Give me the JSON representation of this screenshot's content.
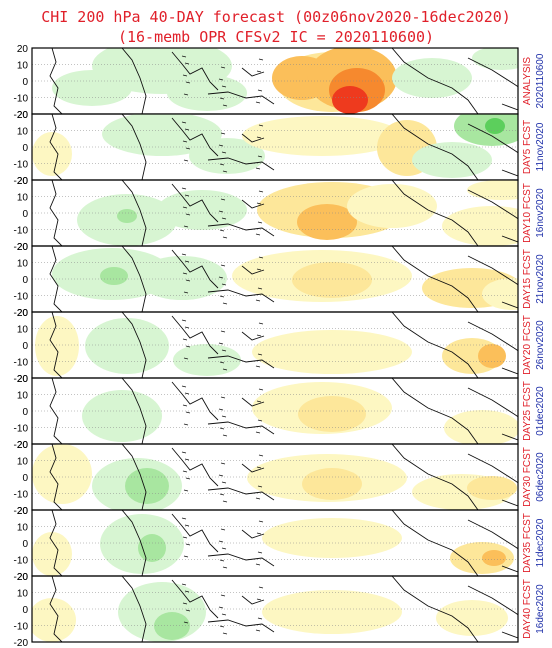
{
  "title": {
    "line1": "CHI 200 hPa 40-DAY forecast (00z06nov2020-16dec2020)",
    "line2": "(16-memb OPR CFSv2 IC = 2020110600)"
  },
  "y_ticks": [
    "20",
    "10",
    "0",
    "-10",
    "-20"
  ],
  "colors": {
    "title": "#e0202a",
    "label_red": "#e0202a",
    "label_blue": "#2233aa",
    "green_light": "#d7f5d2",
    "green_mid": "#a8e6a0",
    "green_dark": "#5ccf5c",
    "yellow_light": "#fdf7c2",
    "yellow_mid": "#fde79a",
    "orange": "#fbbf5a",
    "orange_dark": "#f6892e",
    "red": "#ee3a1e"
  },
  "panels": [
    {
      "label": "ANALYSIS",
      "date": "2020110600"
    },
    {
      "label": "DAY5 FCST",
      "date": "11nov2020"
    },
    {
      "label": "DAY10 FCST",
      "date": "16nov2020"
    },
    {
      "label": "DAY15 FCST",
      "date": "21nov2020"
    },
    {
      "label": "DAY20 FCST",
      "date": "26nov2020"
    },
    {
      "label": "DAY25 FCST",
      "date": "01dec2020"
    },
    {
      "label": "DAY30 FCST",
      "date": "06dec2020"
    },
    {
      "label": "DAY35 FCST",
      "date": "11dec2020"
    },
    {
      "label": "DAY40 FCST",
      "date": "16dec2020"
    }
  ]
}
